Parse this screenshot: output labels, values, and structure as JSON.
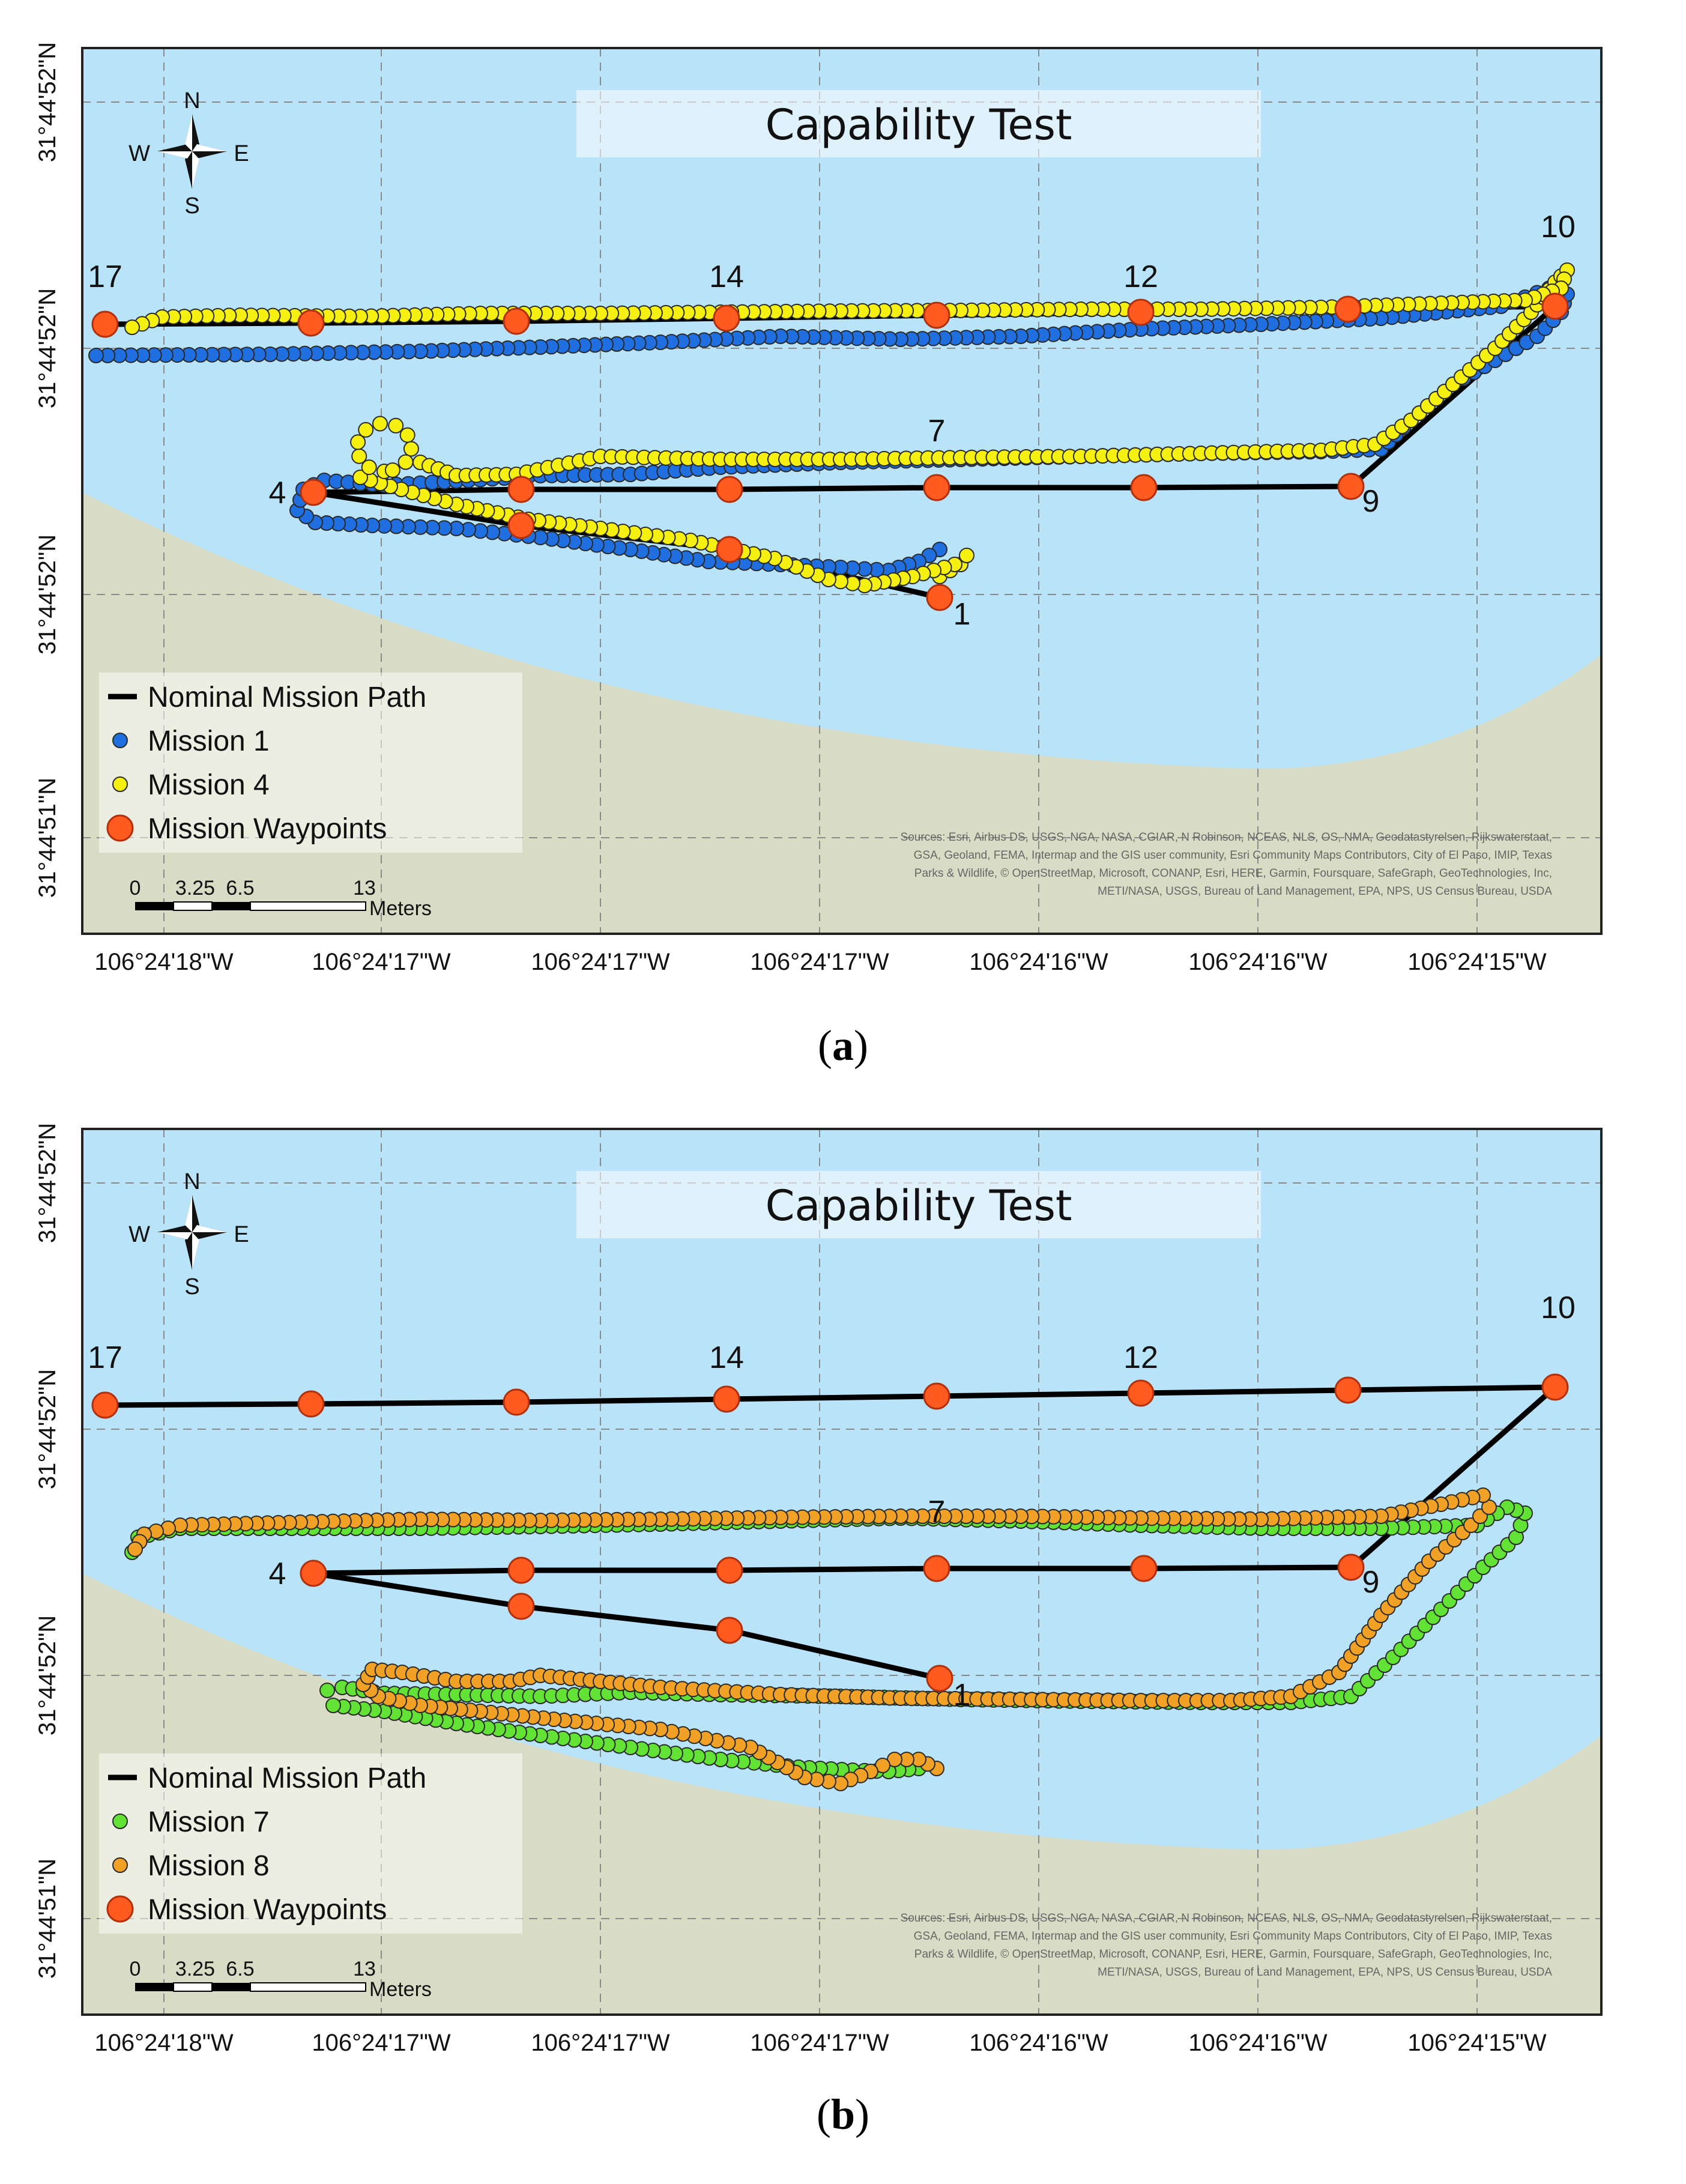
{
  "colors": {
    "water": "#b9e3f8",
    "land": "#d9dcc4",
    "path": "#000000",
    "waypoint": "#ff5a1f",
    "waypoint_stroke": "#b2300a",
    "mission1": "#1f6fe0",
    "mission4": "#f5f00f",
    "mission7": "#62e234",
    "mission8": "#f0a126"
  },
  "panels": [
    {
      "id": "a",
      "caption_open": "(",
      "caption_letter": "a",
      "caption_close": ")",
      "title": "Capability Test",
      "compass": {
        "n": "N",
        "s": "S",
        "e": "E",
        "w": "W"
      },
      "lat_labels": [
        "31°44'52\"N",
        "31°44'52\"N",
        "31°44'52\"N",
        "31°44'51\"N"
      ],
      "lon_labels": [
        "106°24'18\"W",
        "106°24'17\"W",
        "106°24'17\"W",
        "106°24'17\"W",
        "106°24'16\"W",
        "106°24'16\"W",
        "106°24'15\"W"
      ],
      "legend": [
        {
          "symbol": "line",
          "label": "Nominal Mission Path",
          "color": "#000000"
        },
        {
          "symbol": "dot",
          "label": "Mission 1",
          "color": "#1f6fe0"
        },
        {
          "symbol": "dot",
          "label": "Mission 4",
          "color": "#f5f00f"
        },
        {
          "symbol": "waypoint",
          "label": "Mission Waypoints",
          "color": "#ff5a1f"
        }
      ],
      "scalebar": {
        "ticks": [
          "0",
          "3.25",
          "6.5",
          "13"
        ],
        "unit": "Meters"
      },
      "attribution": [
        "Sources: Esri, Airbus DS, USGS, NGA, NASA, CGIAR, N Robinson, NCEAS, NLS, OS, NMA, Geodatastyrelsen, Rijkswaterstaat,",
        "GSA, Geoland, FEMA, Intermap and the GIS user community, Esri Community Maps Contributors, City of El Paso, IMIP, Texas",
        "Parks & Wildlife, © OpenStreetMap, Microsoft, CONANP, Esri, HERE, Garmin, Foursquare, SafeGraph, GeoTechnologies, Inc,",
        "METI/NASA, USGS, Bureau of Land Management, EPA, NPS, US Census Bureau, USDA"
      ],
      "waypoint_labels": [
        {
          "text": "17",
          "wp": 17
        },
        {
          "text": "14",
          "wp": 14
        },
        {
          "text": "12",
          "wp": 12
        },
        {
          "text": "10",
          "wp": 10
        },
        {
          "text": "9",
          "wp": 9
        },
        {
          "text": "7",
          "wp": 7
        },
        {
          "text": "4",
          "wp": 4
        },
        {
          "text": "1",
          "wp": 1
        }
      ],
      "tracks": [
        "mission1",
        "mission4"
      ]
    },
    {
      "id": "b",
      "caption_open": "(",
      "caption_letter": "b",
      "caption_close": ")",
      "title": "Capability Test",
      "compass": {
        "n": "N",
        "s": "S",
        "e": "E",
        "w": "W"
      },
      "lat_labels": [
        "31°44'52\"N",
        "31°44'52\"N",
        "31°44'52\"N",
        "31°44'51\"N"
      ],
      "lon_labels": [
        "106°24'18\"W",
        "106°24'17\"W",
        "106°24'17\"W",
        "106°24'17\"W",
        "106°24'16\"W",
        "106°24'16\"W",
        "106°24'15\"W"
      ],
      "legend": [
        {
          "symbol": "line",
          "label": "Nominal Mission Path",
          "color": "#000000"
        },
        {
          "symbol": "dot",
          "label": "Mission 7",
          "color": "#62e234"
        },
        {
          "symbol": "dot",
          "label": "Mission 8",
          "color": "#f0a126"
        },
        {
          "symbol": "waypoint",
          "label": "Mission Waypoints",
          "color": "#ff5a1f"
        }
      ],
      "scalebar": {
        "ticks": [
          "0",
          "3.25",
          "6.5",
          "13"
        ],
        "unit": "Meters"
      },
      "attribution": [
        "Sources: Esri, Airbus DS, USGS, NGA, NASA, CGIAR, N Robinson, NCEAS, NLS, OS, NMA, Geodatastyrelsen, Rijkswaterstaat,",
        "GSA, Geoland, FEMA, Intermap and the GIS user community, Esri Community Maps Contributors, City of El Paso, IMIP, Texas",
        "Parks & Wildlife, © OpenStreetMap, Microsoft, CONANP, Esri, HERE, Garmin, Foursquare, SafeGraph, GeoTechnologies, Inc,",
        "METI/NASA, USGS, Bureau of Land Management, EPA, NPS, US Census Bureau, USDA"
      ],
      "waypoint_labels": [
        {
          "text": "17",
          "wp": 17
        },
        {
          "text": "14",
          "wp": 14
        },
        {
          "text": "12",
          "wp": 12
        },
        {
          "text": "10",
          "wp": 10
        },
        {
          "text": "9",
          "wp": 9
        },
        {
          "text": "7",
          "wp": 7
        },
        {
          "text": "4",
          "wp": 4
        },
        {
          "text": "1",
          "wp": 1
        }
      ],
      "tracks": [
        "mission7",
        "mission8"
      ]
    }
  ]
}
